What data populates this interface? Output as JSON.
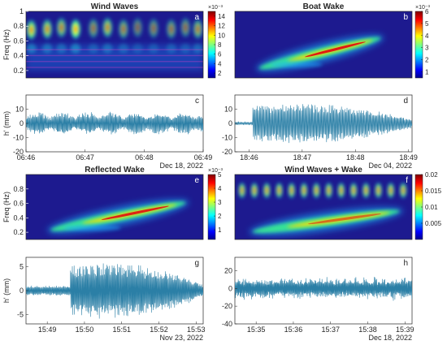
{
  "chart_data": [
    {
      "id": "a",
      "type": "heatmap",
      "title": "Wind Waves",
      "panel_label": "a",
      "ylabel": "Freq (Hz)",
      "ylim": [
        0.1,
        1
      ],
      "yticks": [
        "0.2",
        "0.4",
        "0.6",
        "0.8",
        "1"
      ],
      "colorbar": {
        "exponent": "×10⁻³",
        "ticks": [
          "2",
          "4",
          "6",
          "8",
          "10",
          "12",
          "14"
        ],
        "range": [
          1,
          15
        ]
      },
      "features": [
        {
          "t": 0.03,
          "f": 0.75,
          "i": 0.9
        },
        {
          "t": 0.12,
          "f": 0.76,
          "i": 0.8
        },
        {
          "t": 0.2,
          "f": 0.78,
          "i": 0.7
        },
        {
          "t": 0.28,
          "f": 0.76,
          "i": 1.0
        },
        {
          "t": 0.38,
          "f": 0.77,
          "i": 0.55
        },
        {
          "t": 0.46,
          "f": 0.78,
          "i": 0.75
        },
        {
          "t": 0.55,
          "f": 0.76,
          "i": 0.6
        },
        {
          "t": 0.63,
          "f": 0.78,
          "i": 0.45
        },
        {
          "t": 0.72,
          "f": 0.77,
          "i": 0.5
        },
        {
          "t": 0.82,
          "f": 0.76,
          "i": 0.55
        },
        {
          "t": 0.9,
          "f": 0.78,
          "i": 0.5
        },
        {
          "t": 0.97,
          "f": 0.76,
          "i": 0.65
        }
      ]
    },
    {
      "id": "b",
      "type": "heatmap",
      "title": "Boat Wake",
      "panel_label": "b",
      "ylabel": "",
      "ylim": [
        0.1,
        1
      ],
      "yticks": [],
      "colorbar": {
        "exponent": "×10⁻³",
        "ticks": [
          "1",
          "2",
          "3",
          "4",
          "5",
          "6"
        ],
        "range": [
          0.5,
          6
        ]
      },
      "features": [
        {
          "t0": 0.12,
          "f0": 0.22,
          "t1": 0.84,
          "f1": 0.65,
          "i": 0.95
        }
      ]
    },
    {
      "id": "c",
      "type": "line",
      "panel_label": "c",
      "ylabel": "h' (mm)",
      "ylim": [
        -20,
        20
      ],
      "yticks": [
        -20,
        -10,
        0,
        10
      ],
      "xticks": [
        "06:46",
        "06:47",
        "06:48",
        "06:49"
      ],
      "date_label": "Dec 18, 2022",
      "amplitude": 9,
      "cycles": 180
    },
    {
      "id": "d",
      "type": "line",
      "panel_label": "d",
      "ylabel": "",
      "ylim": [
        -20,
        20
      ],
      "yticks": [
        -20,
        -10,
        0,
        10
      ],
      "xticks": [
        "18:46",
        "18:47",
        "18:48",
        "18:49"
      ],
      "date_label": "Dec 04, 2022",
      "amplitude": 14,
      "cycles": 160
    },
    {
      "id": "e",
      "type": "heatmap",
      "title": "Reflected Wake",
      "panel_label": "e",
      "ylabel": "Freq (Hz)",
      "ylim": [
        0.1,
        1
      ],
      "yticks": [
        "0.2",
        "0.4",
        "0.6",
        "0.8"
      ],
      "colorbar": {
        "exponent": "×10⁻³",
        "ticks": [
          "1",
          "2",
          "3",
          "4",
          "5"
        ],
        "range": [
          0.3,
          5
        ]
      },
      "features": [
        {
          "t0": 0.12,
          "f0": 0.22,
          "t1": 0.92,
          "f1": 0.62,
          "i": 0.9
        }
      ]
    },
    {
      "id": "f",
      "type": "heatmap",
      "title": "Wind Waves + Wake",
      "panel_label": "f",
      "ylabel": "",
      "ylim": [
        0.1,
        1
      ],
      "yticks": [],
      "colorbar": {
        "exponent": "",
        "ticks": [
          "0.005",
          "0.01",
          "0.015",
          "0.02"
        ],
        "range": [
          0,
          0.02
        ]
      },
      "features": [
        {
          "t0": 0.08,
          "f0": 0.2,
          "t1": 0.95,
          "f1": 0.5,
          "i": 0.55
        }
      ]
    },
    {
      "id": "g",
      "type": "line",
      "panel_label": "g",
      "ylabel": "h' (mm)",
      "ylim": [
        -7,
        7
      ],
      "yticks": [
        -5,
        0,
        5
      ],
      "xticks": [
        "15:49",
        "15:50",
        "15:51",
        "15:52",
        "15:53"
      ],
      "date_label": "Nov 23, 2022",
      "amplitude": 6,
      "cycles": 200
    },
    {
      "id": "h",
      "type": "line",
      "panel_label": "h",
      "ylabel": "",
      "ylim": [
        -40,
        35
      ],
      "yticks": [
        -40,
        -20,
        0,
        20
      ],
      "xticks": [
        "15:35",
        "15:36",
        "15:37",
        "15:38",
        "15:39"
      ],
      "date_label": "Dec 18, 2022",
      "amplitude": 14,
      "cycles": 220
    }
  ],
  "colors": {
    "line": "#2b7fa6",
    "axis": "#262626",
    "heat_bg": "#1d1a8f"
  }
}
